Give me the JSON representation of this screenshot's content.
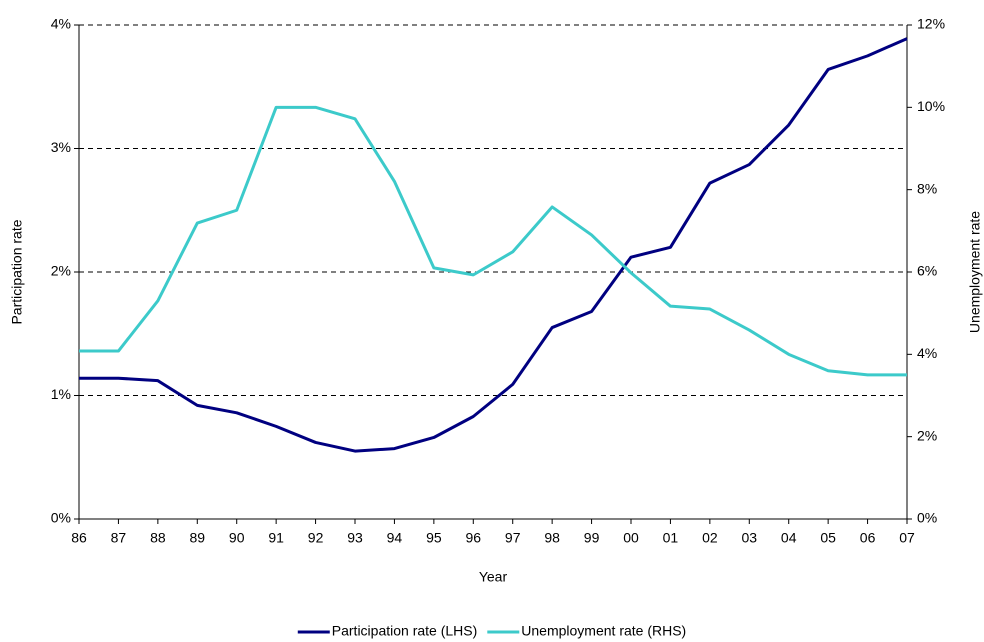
{
  "chart_data": {
    "type": "line",
    "x_label": "Year",
    "y_label": "Participation rate",
    "y2_label": "Unemployment rate",
    "categories": [
      "86",
      "87",
      "88",
      "89",
      "90",
      "91",
      "92",
      "93",
      "94",
      "95",
      "96",
      "97",
      "98",
      "99",
      "00",
      "01",
      "02",
      "03",
      "04",
      "05",
      "06",
      "07"
    ],
    "series": [
      {
        "name": "Participation rate (LHS)",
        "color": "#000080",
        "values": [
          1.14,
          1.14,
          1.12,
          0.92,
          0.86,
          0.75,
          0.62,
          0.55,
          0.57,
          0.66,
          0.83,
          1.09,
          1.55,
          1.68,
          2.12,
          2.2,
          2.72,
          2.87,
          3.19,
          3.64,
          3.75,
          3.89
        ]
      },
      {
        "name": "Unemployment rate (RHS)",
        "color": "#3ccaca",
        "axis": "y2",
        "values": [
          4.08,
          4.08,
          5.3,
          7.19,
          7.5,
          10.0,
          10.0,
          9.72,
          8.2,
          6.1,
          5.93,
          6.49,
          7.58,
          6.9,
          5.98,
          5.17,
          5.1,
          4.59,
          4.0,
          3.6,
          3.5,
          3.5
        ]
      }
    ],
    "ylim": [
      0,
      4
    ],
    "yticks": [
      {
        "value": 0,
        "label": "0%"
      },
      {
        "value": 1,
        "label": "1%"
      },
      {
        "value": 2,
        "label": "2%"
      },
      {
        "value": 3,
        "label": "3%"
      },
      {
        "value": 4,
        "label": "4%"
      }
    ],
    "y2lim": [
      0,
      12
    ],
    "y2ticks": [
      {
        "value": 0,
        "label": "0%"
      },
      {
        "value": 2,
        "label": "2%"
      },
      {
        "value": 4,
        "label": "4%"
      },
      {
        "value": 6,
        "label": "6%"
      },
      {
        "value": 8,
        "label": "8%"
      },
      {
        "value": 10,
        "label": "10%"
      },
      {
        "value": 12,
        "label": "12%"
      }
    ],
    "grid": true,
    "legend": "bottom"
  }
}
